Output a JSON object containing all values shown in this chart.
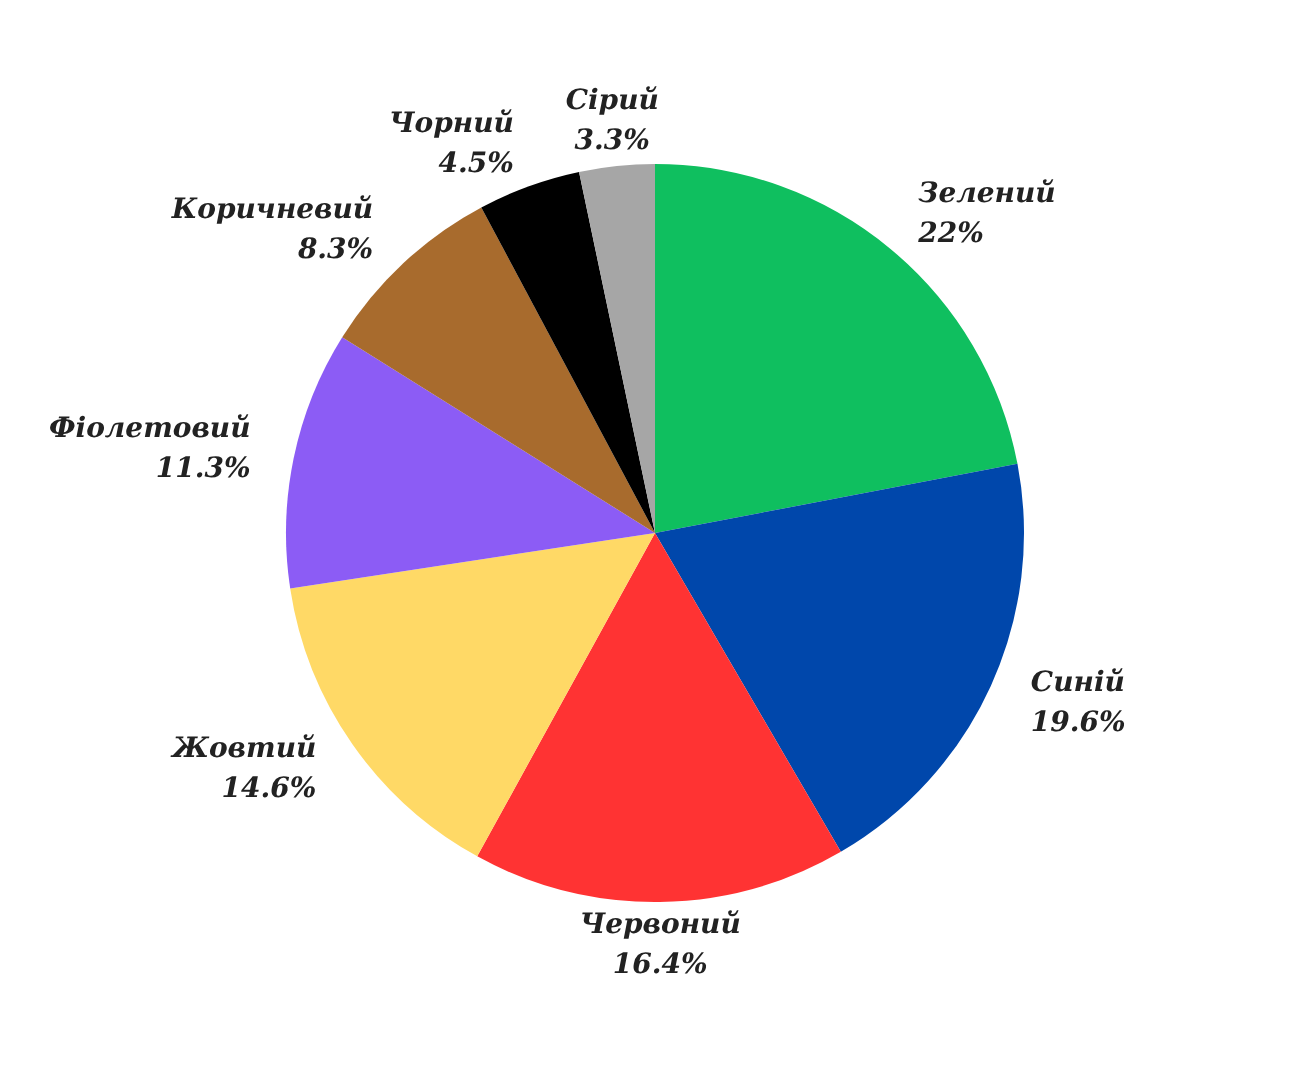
{
  "chart_data": {
    "type": "pie",
    "categories": [
      "Зелений",
      "Синій",
      "Червоний",
      "Жовтий",
      "Фіолетовий",
      "Коричневий",
      "Чорний",
      "Сірий"
    ],
    "values": [
      22,
      19.6,
      16.4,
      14.6,
      11.3,
      8.3,
      4.5,
      3.3
    ],
    "value_labels": [
      "22%",
      "19.6%",
      "16.4%",
      "14.6%",
      "11.3%",
      "8.3%",
      "4.5%",
      "3.3%"
    ],
    "colors": [
      "#0fbf5f",
      "#0047ab",
      "#ff3333",
      "#ffd966",
      "#8c5cf5",
      "#a86b2d",
      "#000000",
      "#a6a6a6"
    ],
    "legend": false
  }
}
